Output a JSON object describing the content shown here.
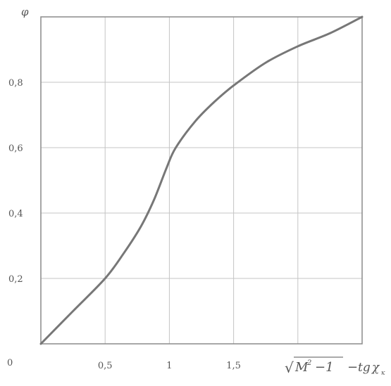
{
  "chart_data": {
    "type": "line",
    "title": "",
    "ylabel": "φ",
    "xlabel": "√M²−1 − tgχ",
    "xlabel_parts": {
      "radical": "√",
      "m": "M",
      "exp": "2",
      "minus_one": "−1",
      "minus": "−",
      "tg": "tg",
      "chi": "χ",
      "sub": "к"
    },
    "origin_label": "0",
    "xlim": [
      0,
      2.5
    ],
    "ylim": [
      0,
      1.0
    ],
    "x_ticks": [
      {
        "value": 0.5,
        "label": "0,5"
      },
      {
        "value": 1.0,
        "label": "1"
      },
      {
        "value": 1.5,
        "label": "1,5"
      }
    ],
    "y_ticks": [
      {
        "value": 0.2,
        "label": "0,2"
      },
      {
        "value": 0.4,
        "label": "0,4"
      },
      {
        "value": 0.6,
        "label": "0,6"
      },
      {
        "value": 0.8,
        "label": "0,8"
      }
    ],
    "grid": true,
    "series": [
      {
        "color": "#777777",
        "x": [
          0,
          0.25,
          0.5,
          0.65,
          0.78,
          0.88,
          0.98,
          1.05,
          1.2,
          1.35,
          1.5,
          1.75,
          2.0,
          2.25,
          2.5
        ],
        "y": [
          0,
          0.1,
          0.2,
          0.28,
          0.36,
          0.44,
          0.54,
          0.6,
          0.68,
          0.74,
          0.79,
          0.86,
          0.91,
          0.95,
          1.0
        ]
      }
    ]
  }
}
